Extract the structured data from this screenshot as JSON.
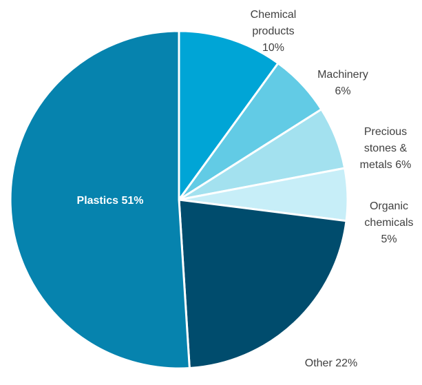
{
  "chart_data": {
    "type": "pie",
    "title": "",
    "start_angle_deg": 0,
    "direction": "clockwise",
    "slices": [
      {
        "name": "Chemical products",
        "value": 10,
        "label_lines": [
          "Chemical",
          "products",
          "10%"
        ],
        "color": "#00A5D6"
      },
      {
        "name": "Machinery",
        "value": 6,
        "label_lines": [
          "Machinery",
          "6%"
        ],
        "color": "#62CBE5"
      },
      {
        "name": "Precious stones & metals",
        "value": 6,
        "label_lines": [
          "Precious",
          "stones &",
          "metals 6%"
        ],
        "color": "#A3E1EF"
      },
      {
        "name": "Organic chemicals",
        "value": 5,
        "label_lines": [
          "Organic",
          "chemicals",
          "5%"
        ],
        "color": "#C7EEF8"
      },
      {
        "name": "Other",
        "value": 22,
        "label_lines": [
          "Other 22%"
        ],
        "color": "#004C6D"
      },
      {
        "name": "Plastics",
        "value": 51,
        "label_lines": [
          "Plastics 51%"
        ],
        "color": "#0683AE"
      }
    ]
  }
}
